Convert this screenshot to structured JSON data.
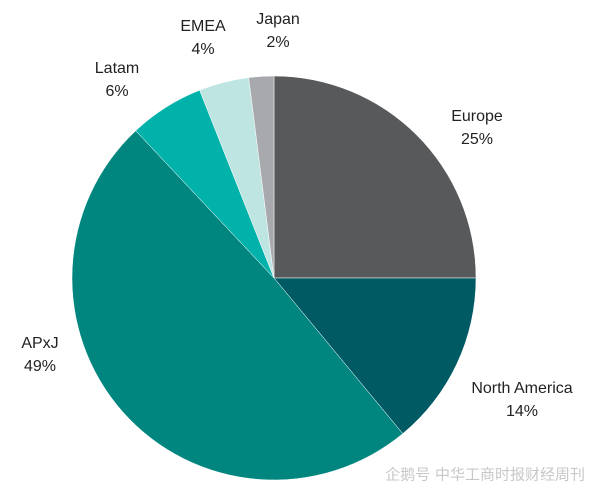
{
  "chart_data": {
    "type": "pie",
    "categories": [
      "Europe",
      "North America",
      "APxJ",
      "Latam",
      "EMEA",
      "Japan"
    ],
    "values": [
      25,
      14,
      49,
      6,
      4,
      2
    ],
    "value_labels": [
      "25%",
      "14%",
      "49%",
      "6%",
      "4%",
      "2%"
    ],
    "colors": [
      "#58595b",
      "#005a64",
      "#00857f",
      "#00b2a9",
      "#bfe5e3",
      "#a7a9ac"
    ]
  },
  "watermark": "企鹅号 中华工商时报财经周刊"
}
